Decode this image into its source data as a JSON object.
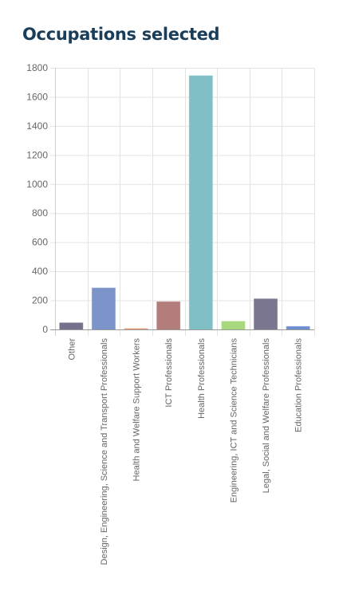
{
  "page": {
    "title": "Occupations selected"
  },
  "chart_data": {
    "type": "bar",
    "title": "Occupations selected",
    "xlabel": "",
    "ylabel": "",
    "categories": [
      "Other",
      "Design, Engineering, Science and Transport Professionals",
      "Health and Welfare Support Workers",
      "ICT Professionals",
      "Health Professionals",
      "Engineering, ICT and Science Technicians",
      "Legal, Social and Welfare Professionals",
      "Education Professionals"
    ],
    "values": [
      45,
      285,
      5,
      190,
      1745,
      55,
      210,
      20
    ],
    "colors": [
      "#77708d",
      "#7b94c9",
      "#e49a73",
      "#b37d7b",
      "#7fbfc5",
      "#a8d87e",
      "#7a7690",
      "#6f8ed0"
    ],
    "y_ticks": [
      "0",
      "200",
      "400",
      "600",
      "800",
      "1000",
      "1200",
      "1400",
      "1600",
      "1800"
    ],
    "ylim": [
      0,
      1800
    ],
    "grid": true,
    "legend": "none"
  }
}
